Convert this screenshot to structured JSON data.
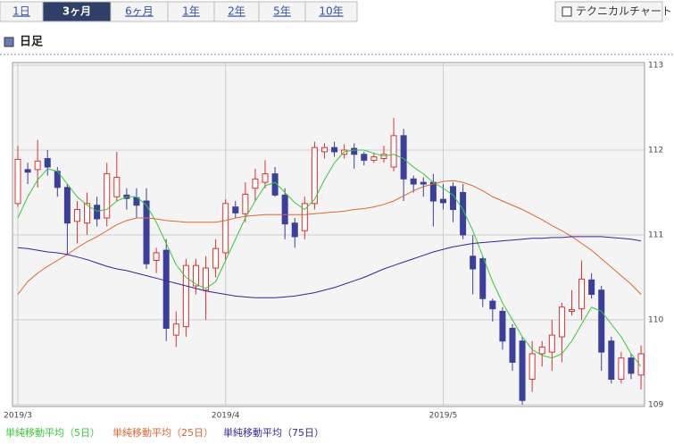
{
  "tabs": {
    "items": [
      "1日",
      "3ヶ月",
      "6ヶ月",
      "1年",
      "2年",
      "5年",
      "10年"
    ],
    "selected": 1
  },
  "button": "テクニカルチャート",
  "heading": "日足",
  "chart_data": {
    "type": "candlestick",
    "categories": [
      "2019/3",
      null,
      null,
      null,
      null,
      null,
      null,
      null,
      null,
      null,
      null,
      null,
      null,
      null,
      null,
      null,
      null,
      null,
      null,
      null,
      null,
      "2019/4",
      null,
      null,
      null,
      null,
      null,
      null,
      null,
      null,
      null,
      null,
      null,
      null,
      null,
      null,
      null,
      null,
      null,
      null,
      null,
      null,
      null,
      "2019/5",
      null,
      null,
      null,
      null,
      null,
      null,
      null,
      null,
      null,
      null,
      null,
      null,
      null,
      null,
      null,
      null,
      null,
      null,
      null,
      null
    ],
    "open": [
      111.37,
      111.77,
      111.77,
      111.9,
      111.75,
      111.56,
      111.16,
      111.14,
      111.35,
      111.2,
      111.45,
      111.47,
      111.44,
      111.4,
      110.7,
      110.82,
      109.82,
      109.92,
      110.4,
      110.35,
      110.61,
      110.79,
      111.33,
      111.25,
      111.55,
      111.62,
      111.72,
      111.47,
      111.14,
      111.05,
      111.37,
      111.98,
      112.03,
      111.95,
      112.02,
      111.95,
      111.88,
      111.9,
      111.8,
      112.17,
      111.66,
      111.62,
      111.62,
      111.42,
      111.57,
      111.5,
      110.75,
      110.72,
      110.22,
      110.1,
      109.9,
      109.75,
      109.3,
      109.6,
      109.62,
      109.8,
      110.1,
      110.13,
      110.47,
      110.35,
      109.75,
      109.3,
      109.55,
      109.35
    ],
    "high": [
      112.05,
      111.85,
      112.12,
      112.0,
      111.8,
      111.6,
      111.4,
      111.5,
      111.45,
      111.85,
      111.98,
      111.55,
      111.55,
      111.55,
      110.85,
      110.95,
      110.1,
      110.72,
      110.72,
      110.75,
      110.95,
      111.42,
      111.4,
      111.62,
      111.78,
      111.88,
      111.8,
      111.55,
      111.2,
      111.45,
      112.1,
      112.08,
      112.1,
      112.07,
      112.08,
      111.98,
      111.97,
      112.05,
      112.38,
      112.25,
      111.7,
      111.68,
      111.72,
      111.6,
      111.62,
      111.6,
      111.0,
      110.75,
      110.25,
      110.15,
      109.95,
      109.8,
      109.75,
      109.75,
      110.0,
      110.2,
      110.35,
      110.7,
      110.55,
      110.4,
      109.8,
      109.62,
      109.6,
      109.7
    ],
    "low": [
      111.33,
      111.6,
      111.56,
      111.7,
      111.45,
      110.77,
      110.9,
      111.0,
      111.1,
      111.1,
      111.4,
      111.3,
      111.2,
      110.6,
      110.55,
      109.75,
      109.68,
      109.8,
      110.3,
      110.0,
      110.5,
      110.7,
      111.2,
      111.15,
      111.4,
      111.55,
      111.45,
      110.95,
      110.85,
      110.95,
      111.3,
      111.9,
      111.92,
      111.9,
      111.78,
      111.82,
      111.85,
      111.85,
      111.75,
      111.4,
      111.5,
      111.45,
      111.1,
      111.3,
      111.15,
      110.95,
      110.3,
      110.15,
      109.98,
      109.65,
      109.4,
      109.0,
      109.15,
      109.45,
      109.4,
      109.5,
      110.05,
      110.0,
      110.25,
      109.4,
      109.25,
      109.25,
      109.3,
      109.18
    ],
    "close": [
      111.89,
      111.74,
      111.87,
      111.8,
      111.56,
      111.14,
      111.3,
      111.37,
      111.19,
      111.72,
      111.68,
      111.43,
      111.35,
      110.66,
      110.79,
      109.9,
      109.95,
      110.64,
      110.64,
      110.61,
      110.84,
      111.37,
      111.26,
      111.48,
      111.66,
      111.72,
      111.47,
      111.13,
      110.98,
      111.37,
      112.03,
      112.03,
      111.98,
      112.0,
      111.95,
      111.88,
      111.92,
      111.95,
      112.17,
      111.66,
      111.6,
      111.6,
      111.4,
      111.38,
      111.3,
      111.0,
      110.6,
      110.25,
      110.13,
      109.75,
      109.5,
      109.05,
      109.6,
      109.68,
      109.82,
      110.15,
      110.12,
      110.48,
      110.3,
      109.62,
      109.3,
      109.55,
      109.37,
      109.6
    ],
    "up_color": "#e03030",
    "down_color": "#3a3f9c",
    "series": [
      {
        "name": "単純移動平均（5日）",
        "color": "#33cc33",
        "values": [
          111.2,
          111.45,
          111.65,
          111.78,
          111.75,
          111.6,
          111.45,
          111.35,
          111.28,
          111.3,
          111.4,
          111.45,
          111.45,
          111.35,
          111.15,
          110.9,
          110.65,
          110.5,
          110.42,
          110.37,
          110.45,
          110.7,
          110.95,
          111.2,
          111.4,
          111.58,
          111.62,
          111.5,
          111.38,
          111.3,
          111.42,
          111.65,
          111.85,
          111.98,
          112.0,
          112.0,
          111.96,
          111.93,
          111.95,
          111.9,
          111.8,
          111.72,
          111.62,
          111.55,
          111.47,
          111.3,
          111.05,
          110.75,
          110.45,
          110.2,
          110.0,
          109.8,
          109.65,
          109.58,
          109.55,
          109.6,
          109.75,
          109.95,
          110.15,
          110.1,
          109.95,
          109.8,
          109.6,
          109.45
        ]
      },
      {
        "name": "単純移動平均（25日）",
        "color": "#e0662a",
        "values": [
          110.3,
          110.45,
          110.55,
          110.63,
          110.7,
          110.77,
          110.85,
          110.92,
          110.98,
          111.05,
          111.12,
          111.17,
          111.2,
          111.2,
          111.19,
          111.17,
          111.16,
          111.15,
          111.15,
          111.15,
          111.15,
          111.17,
          111.2,
          111.22,
          111.23,
          111.24,
          111.24,
          111.24,
          111.24,
          111.24,
          111.25,
          111.26,
          111.27,
          111.28,
          111.3,
          111.31,
          111.33,
          111.36,
          111.4,
          111.46,
          111.52,
          111.57,
          111.6,
          111.63,
          111.64,
          111.62,
          111.58,
          111.52,
          111.45,
          111.4,
          111.35,
          111.3,
          111.24,
          111.18,
          111.11,
          111.05,
          110.98,
          110.9,
          110.82,
          110.72,
          110.62,
          110.52,
          110.42,
          110.3
        ]
      },
      {
        "name": "単純移動平均（75日）",
        "color": "#3a1fa0",
        "values": [
          110.85,
          110.84,
          110.82,
          110.8,
          110.79,
          110.77,
          110.74,
          110.71,
          110.67,
          110.63,
          110.6,
          110.58,
          110.55,
          110.52,
          110.49,
          110.46,
          110.43,
          110.4,
          110.37,
          110.34,
          110.32,
          110.3,
          110.28,
          110.27,
          110.26,
          110.26,
          110.26,
          110.27,
          110.28,
          110.3,
          110.32,
          110.35,
          110.38,
          110.42,
          110.46,
          110.5,
          110.55,
          110.6,
          110.64,
          110.68,
          110.72,
          110.76,
          110.8,
          110.83,
          110.86,
          110.88,
          110.9,
          110.91,
          110.92,
          110.93,
          110.94,
          110.95,
          110.96,
          110.96,
          110.97,
          110.97,
          110.98,
          110.98,
          110.98,
          110.98,
          110.97,
          110.96,
          110.95,
          110.93
        ]
      }
    ],
    "ylim": [
      109,
      113
    ],
    "yticks": [
      109,
      110,
      111,
      112,
      113
    ],
    "grid": true
  }
}
